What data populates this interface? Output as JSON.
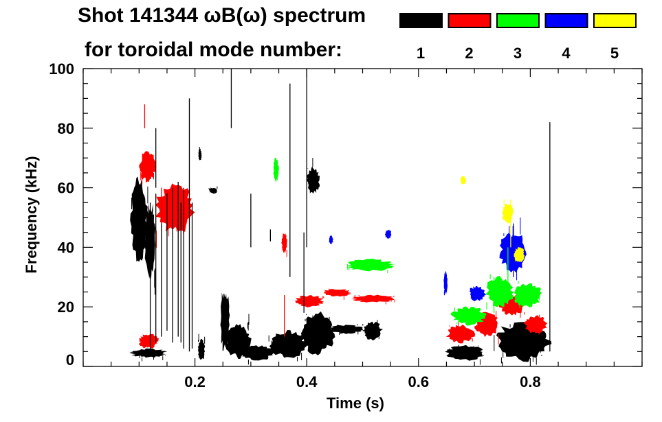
{
  "chart_data": {
    "type": "heatmap",
    "title_line1": "Shot 141344 ωB(ω) spectrum",
    "title_line2": "for toroidal mode number:",
    "xlabel": "Time (s)",
    "ylabel": "Frequency (kHz)",
    "xlim": [
      0,
      1.0
    ],
    "ylim": [
      0,
      100
    ],
    "xticks": [
      {
        "v": 0.2,
        "label": "0.2"
      },
      {
        "v": 0.4,
        "label": "0.4"
      },
      {
        "v": 0.6,
        "label": "0.6"
      },
      {
        "v": 0.8,
        "label": "0.8"
      }
    ],
    "yticks": [
      {
        "v": 0,
        "label": "0"
      },
      {
        "v": 20,
        "label": "20"
      },
      {
        "v": 40,
        "label": "40"
      },
      {
        "v": 60,
        "label": "60"
      },
      {
        "v": 80,
        "label": "80"
      },
      {
        "v": 100,
        "label": "100"
      }
    ],
    "x_minor_step": 0.05,
    "y_minor_step": 5,
    "legend": [
      {
        "mode": "1",
        "color": "#000000"
      },
      {
        "mode": "2",
        "color": "#ff0000"
      },
      {
        "mode": "3",
        "color": "#00ff00"
      },
      {
        "mode": "4",
        "color": "#0000ff"
      },
      {
        "mode": "5",
        "color": "#ffff00"
      }
    ],
    "blobs": [
      {
        "mode": 1,
        "t0": 0.085,
        "t1": 0.115,
        "f0": 35,
        "f1": 63
      },
      {
        "mode": 1,
        "t0": 0.11,
        "t1": 0.13,
        "f0": 30,
        "f1": 55
      },
      {
        "mode": 1,
        "t0": 0.085,
        "t1": 0.15,
        "f0": 3,
        "f1": 6
      },
      {
        "mode": 1,
        "t0": 0.205,
        "t1": 0.218,
        "f0": 2,
        "f1": 9
      },
      {
        "mode": 1,
        "t0": 0.245,
        "t1": 0.262,
        "f0": 5,
        "f1": 26
      },
      {
        "mode": 1,
        "t0": 0.255,
        "t1": 0.3,
        "f0": 3,
        "f1": 14
      },
      {
        "mode": 1,
        "t0": 0.28,
        "t1": 0.34,
        "f0": 2,
        "f1": 7
      },
      {
        "mode": 1,
        "t0": 0.33,
        "t1": 0.4,
        "f0": 3,
        "f1": 12
      },
      {
        "mode": 1,
        "t0": 0.39,
        "t1": 0.45,
        "f0": 4,
        "f1": 18
      },
      {
        "mode": 1,
        "t0": 0.44,
        "t1": 0.5,
        "f0": 11,
        "f1": 14
      },
      {
        "mode": 1,
        "t0": 0.5,
        "t1": 0.535,
        "f0": 9,
        "f1": 15
      },
      {
        "mode": 1,
        "t0": 0.4,
        "t1": 0.423,
        "f0": 58,
        "f1": 67
      },
      {
        "mode": 1,
        "t0": 0.65,
        "t1": 0.72,
        "f0": 2,
        "f1": 7
      },
      {
        "mode": 1,
        "t0": 0.735,
        "t1": 0.84,
        "f0": 2,
        "f1": 15
      },
      {
        "mode": 1,
        "t0": 0.225,
        "t1": 0.24,
        "f0": 58,
        "f1": 60
      },
      {
        "mode": 1,
        "t0": 0.206,
        "t1": 0.212,
        "f0": 69,
        "f1": 73
      },
      {
        "mode": 2,
        "t0": 0.1,
        "t1": 0.13,
        "f0": 62,
        "f1": 72
      },
      {
        "mode": 2,
        "t0": 0.13,
        "t1": 0.2,
        "f0": 45,
        "f1": 61
      },
      {
        "mode": 2,
        "t0": 0.1,
        "t1": 0.135,
        "f0": 6,
        "f1": 11
      },
      {
        "mode": 2,
        "t0": 0.355,
        "t1": 0.365,
        "f0": 38,
        "f1": 45
      },
      {
        "mode": 2,
        "t0": 0.38,
        "t1": 0.43,
        "f0": 20,
        "f1": 24
      },
      {
        "mode": 2,
        "t0": 0.43,
        "t1": 0.48,
        "f0": 23.5,
        "f1": 26
      },
      {
        "mode": 2,
        "t0": 0.48,
        "t1": 0.56,
        "f0": 21.5,
        "f1": 24
      },
      {
        "mode": 2,
        "t0": 0.65,
        "t1": 0.7,
        "f0": 8,
        "f1": 14
      },
      {
        "mode": 2,
        "t0": 0.7,
        "t1": 0.745,
        "f0": 10,
        "f1": 18
      },
      {
        "mode": 2,
        "t0": 0.745,
        "t1": 0.79,
        "f0": 17,
        "f1": 24
      },
      {
        "mode": 2,
        "t0": 0.79,
        "t1": 0.83,
        "f0": 11,
        "f1": 17
      },
      {
        "mode": 3,
        "t0": 0.47,
        "t1": 0.555,
        "f0": 32,
        "f1": 36
      },
      {
        "mode": 3,
        "t0": 0.66,
        "t1": 0.72,
        "f0": 14,
        "f1": 20
      },
      {
        "mode": 3,
        "t0": 0.72,
        "t1": 0.77,
        "f0": 20,
        "f1": 30
      },
      {
        "mode": 3,
        "t0": 0.77,
        "t1": 0.82,
        "f0": 20,
        "f1": 28
      },
      {
        "mode": 3,
        "t0": 0.34,
        "t1": 0.35,
        "f0": 62,
        "f1": 70
      },
      {
        "mode": 4,
        "t0": 0.745,
        "t1": 0.795,
        "f0": 32,
        "f1": 45
      },
      {
        "mode": 4,
        "t0": 0.69,
        "t1": 0.72,
        "f0": 22,
        "f1": 27
      },
      {
        "mode": 4,
        "t0": 0.44,
        "t1": 0.447,
        "f0": 41,
        "f1": 44
      },
      {
        "mode": 4,
        "t0": 0.54,
        "t1": 0.552,
        "f0": 43,
        "f1": 46
      },
      {
        "mode": 4,
        "t0": 0.645,
        "t1": 0.652,
        "f0": 24,
        "f1": 32
      },
      {
        "mode": 5,
        "t0": 0.75,
        "t1": 0.77,
        "f0": 48,
        "f1": 55
      },
      {
        "mode": 5,
        "t0": 0.675,
        "t1": 0.685,
        "f0": 61,
        "f1": 64
      },
      {
        "mode": 5,
        "t0": 0.77,
        "t1": 0.79,
        "f0": 35,
        "f1": 40
      }
    ],
    "streaks": [
      {
        "mode": 1,
        "t": 0.12,
        "f0": 5,
        "f1": 55
      },
      {
        "mode": 1,
        "t": 0.13,
        "f0": 8,
        "f1": 58
      },
      {
        "mode": 1,
        "t": 0.14,
        "f0": 10,
        "f1": 56
      },
      {
        "mode": 1,
        "t": 0.15,
        "f0": 12,
        "f1": 58
      },
      {
        "mode": 1,
        "t": 0.16,
        "f0": 8,
        "f1": 60
      },
      {
        "mode": 1,
        "t": 0.17,
        "f0": 10,
        "f1": 62
      },
      {
        "mode": 1,
        "t": 0.175,
        "f0": 8,
        "f1": 55
      },
      {
        "mode": 1,
        "t": 0.18,
        "f0": 6,
        "f1": 60
      },
      {
        "mode": 1,
        "t": 0.19,
        "f0": 5,
        "f1": 90
      },
      {
        "mode": 1,
        "t": 0.195,
        "f0": 6,
        "f1": 55
      },
      {
        "mode": 1,
        "t": 0.13,
        "f0": 60,
        "f1": 80
      },
      {
        "mode": 1,
        "t": 0.265,
        "f0": 80,
        "f1": 100
      },
      {
        "mode": 1,
        "t": 0.37,
        "f0": 30,
        "f1": 95
      },
      {
        "mode": 1,
        "t": 0.4,
        "f0": 40,
        "f1": 100
      },
      {
        "mode": 1,
        "t": 0.395,
        "f0": 18,
        "f1": 45
      },
      {
        "mode": 1,
        "t": 0.835,
        "f0": 5,
        "f1": 82
      },
      {
        "mode": 1,
        "t": 0.3,
        "f0": 40,
        "f1": 58
      },
      {
        "mode": 1,
        "t": 0.335,
        "f0": 42,
        "f1": 46
      },
      {
        "mode": 2,
        "t": 0.11,
        "f0": 80,
        "f1": 88
      },
      {
        "mode": 2,
        "t": 0.14,
        "f0": 48,
        "f1": 60
      },
      {
        "mode": 2,
        "t": 0.36,
        "f0": 10,
        "f1": 24
      },
      {
        "mode": 3,
        "t": 0.735,
        "f0": 18,
        "f1": 30
      },
      {
        "mode": 3,
        "t": 0.76,
        "f0": 25,
        "f1": 40
      },
      {
        "mode": 4,
        "t": 0.77,
        "f0": 30,
        "f1": 48
      },
      {
        "mode": 5,
        "t": 0.765,
        "f0": 40,
        "f1": 56
      }
    ]
  }
}
